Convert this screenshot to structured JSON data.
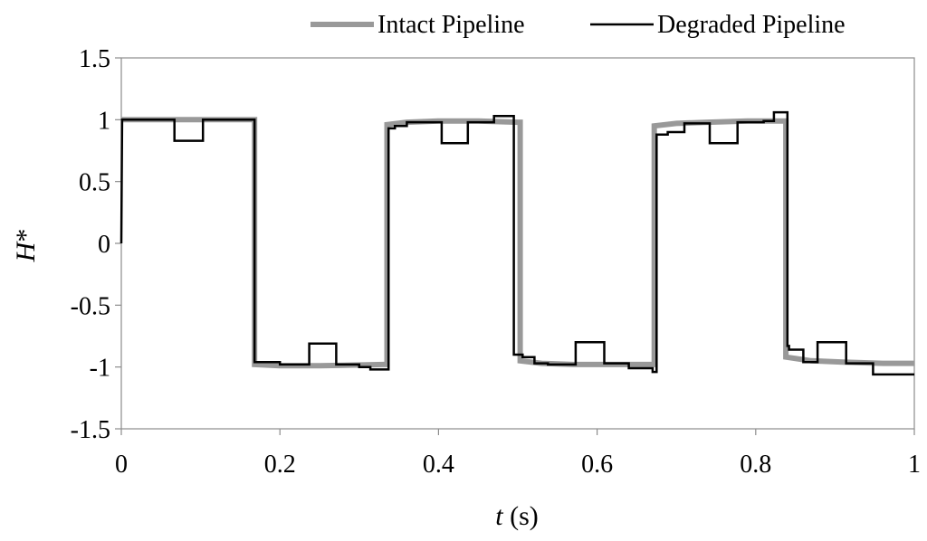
{
  "chart_data": {
    "type": "line",
    "xlabel": "t (s)",
    "xlabel_var": "t",
    "xlabel_unit": " (s)",
    "ylabel": "H*",
    "ylabel_var": "H",
    "ylabel_sup": "*",
    "xlim": [
      0,
      1
    ],
    "ylim": [
      -1.5,
      1.5
    ],
    "x_ticks": [
      0,
      0.2,
      0.4,
      0.6,
      0.8,
      1
    ],
    "x_tick_labels": [
      "0",
      "0.2",
      "0.4",
      "0.6",
      "0.8",
      "1"
    ],
    "y_ticks": [
      1.5,
      1,
      0.5,
      0,
      -0.5,
      -1,
      -1.5
    ],
    "y_tick_labels": [
      "1.5",
      "1",
      "0.5",
      "0",
      "-0.5",
      "-1",
      "-1.5"
    ],
    "grid": false,
    "legend_position": "top-right",
    "series": [
      {
        "name": "Intact Pipeline",
        "color": "#999999",
        "x": [
          0,
          0.005,
          0.168,
          0.168,
          0.2,
          0.25,
          0.33,
          0.335,
          0.335,
          0.36,
          0.4,
          0.45,
          0.5,
          0.503,
          0.503,
          0.53,
          0.57,
          0.62,
          0.67,
          0.672,
          0.672,
          0.7,
          0.74,
          0.79,
          0.835,
          0.838,
          0.838,
          0.87,
          0.91,
          0.96,
          1.0
        ],
        "y": [
          1,
          1,
          1,
          -0.98,
          -0.99,
          -0.99,
          -0.98,
          -0.98,
          0.96,
          0.98,
          0.99,
          0.99,
          0.98,
          0.98,
          -0.95,
          -0.97,
          -0.98,
          -0.98,
          -0.98,
          -0.98,
          0.95,
          0.97,
          0.98,
          0.99,
          0.99,
          0.99,
          -0.92,
          -0.95,
          -0.96,
          -0.97,
          -0.97
        ]
      },
      {
        "name": "Degraded Pipeline",
        "color": "#000000",
        "x": [
          0,
          0.001,
          0.067,
          0.067,
          0.103,
          0.103,
          0.168,
          0.168,
          0.2,
          0.2,
          0.237,
          0.237,
          0.271,
          0.271,
          0.3,
          0.3,
          0.314,
          0.314,
          0.337,
          0.337,
          0.345,
          0.345,
          0.36,
          0.36,
          0.404,
          0.404,
          0.437,
          0.437,
          0.47,
          0.47,
          0.495,
          0.495,
          0.506,
          0.506,
          0.507,
          0.507,
          0.521,
          0.521,
          0.538,
          0.538,
          0.573,
          0.573,
          0.609,
          0.609,
          0.64,
          0.64,
          0.67,
          0.67,
          0.675,
          0.675,
          0.689,
          0.689,
          0.71,
          0.71,
          0.742,
          0.742,
          0.777,
          0.777,
          0.81,
          0.81,
          0.823,
          0.823,
          0.84,
          0.84,
          0.842,
          0.842,
          0.86,
          0.86,
          0.878,
          0.878,
          0.914,
          0.914,
          0.948,
          0.948,
          0.98,
          0.98,
          1.0
        ],
        "y": [
          0,
          1,
          1,
          0.83,
          0.83,
          1,
          1,
          -0.96,
          -0.96,
          -0.98,
          -0.98,
          -0.81,
          -0.81,
          -0.98,
          -0.98,
          -1.0,
          -1.0,
          -1.02,
          -1.02,
          0.93,
          0.93,
          0.95,
          0.95,
          0.98,
          0.98,
          0.81,
          0.81,
          0.98,
          0.98,
          1.03,
          1.03,
          -0.9,
          -0.9,
          -0.92,
          -0.92,
          -0.92,
          -0.92,
          -0.97,
          -0.97,
          -0.98,
          -0.98,
          -0.8,
          -0.8,
          -0.97,
          -0.97,
          -1.01,
          -1.01,
          -1.04,
          -1.04,
          0.88,
          0.88,
          0.9,
          0.9,
          0.97,
          0.97,
          0.81,
          0.81,
          0.98,
          0.98,
          0.99,
          0.99,
          1.06,
          1.06,
          -0.83,
          -0.83,
          -0.86,
          -0.86,
          -0.96,
          -0.96,
          -0.8,
          -0.8,
          -0.97,
          -0.97,
          -1.06,
          -1.06,
          -1.06,
          -1.06
        ]
      }
    ]
  }
}
